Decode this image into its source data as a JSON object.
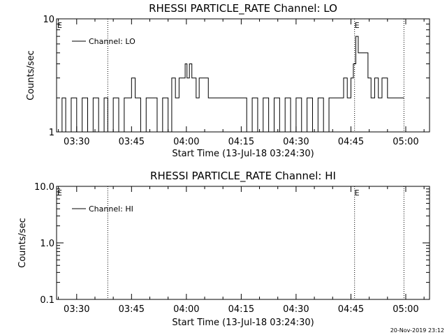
{
  "footer": {
    "timestamp": "20-Nov-2019 23:12"
  },
  "chart_data": [
    {
      "type": "line",
      "title": "RHESSI PARTICLE_RATE Channel: LO",
      "xlabel": "Start Time (13-Jul-18 03:24:30)",
      "ylabel": "Counts/sec",
      "y_scale": "log",
      "ylim": [
        1,
        10
      ],
      "xlim": [
        "03:24:30",
        "05:06:30"
      ],
      "x_ticks": [
        "03:30",
        "03:45",
        "04:00",
        "04:15",
        "04:30",
        "04:45",
        "05:00"
      ],
      "y_ticks": [
        "1",
        "10"
      ],
      "legend": {
        "position": "top-left",
        "entries": [
          "Channel: LO"
        ]
      },
      "event_lines": [
        "03:38:30",
        "04:46:00",
        "04:59:30"
      ],
      "event_markers": [
        {
          "label": "E",
          "time": "03:24:30"
        },
        {
          "label": "E",
          "time": "04:46:00"
        }
      ],
      "series": [
        {
          "name": "Channel: LO",
          "x": [
            "03:24:30",
            "03:26:00",
            "03:27:00",
            "03:28:30",
            "03:30:00",
            "03:31:30",
            "03:33:00",
            "03:34:30",
            "03:36:00",
            "03:37:30",
            "03:38:30",
            "03:40:00",
            "03:41:30",
            "03:43:00",
            "03:44:00",
            "03:45:00",
            "03:46:00",
            "03:47:30",
            "03:49:00",
            "03:50:30",
            "03:52:00",
            "03:53:30",
            "03:55:00",
            "03:56:00",
            "03:57:00",
            "03:58:00",
            "03:59:00",
            "03:59:40",
            "04:00:10",
            "04:00:50",
            "04:01:30",
            "04:02:00",
            "04:02:40",
            "04:03:30",
            "04:04:30",
            "04:06:00",
            "04:07:30",
            "04:09:00",
            "04:10:30",
            "04:12:00",
            "04:13:30",
            "04:15:00",
            "04:16:30",
            "04:18:00",
            "04:19:30",
            "04:21:00",
            "04:22:30",
            "04:24:00",
            "04:25:30",
            "04:27:00",
            "04:28:30",
            "04:30:00",
            "04:31:30",
            "04:33:00",
            "04:34:30",
            "04:36:00",
            "04:37:30",
            "04:39:00",
            "04:40:30",
            "04:42:00",
            "04:43:00",
            "04:44:00",
            "04:45:00",
            "04:45:40",
            "04:46:20",
            "04:47:00",
            "04:48:00",
            "04:49:00",
            "04:49:40",
            "04:50:30",
            "04:51:30",
            "04:52:30",
            "04:53:30",
            "04:55:00",
            "04:56:30",
            "04:58:00",
            "04:59:30"
          ],
          "y": [
            1,
            2,
            1,
            2,
            1,
            2,
            1,
            2,
            1,
            2,
            1,
            2,
            1,
            2,
            2,
            3,
            2,
            1,
            2,
            2,
            1,
            2,
            1,
            3,
            2,
            3,
            3,
            4,
            3,
            4,
            3,
            3,
            2,
            3,
            3,
            2,
            2,
            2,
            2,
            2,
            2,
            2,
            1,
            2,
            1,
            2,
            1,
            2,
            1,
            2,
            1,
            2,
            1,
            2,
            1,
            2,
            1,
            2,
            2,
            2,
            3,
            2,
            3,
            4,
            7,
            5,
            5,
            5,
            3,
            2,
            3,
            2,
            3,
            2,
            2,
            2,
            2
          ]
        }
      ]
    },
    {
      "type": "line",
      "title": "RHESSI PARTICLE_RATE Channel: HI",
      "xlabel": "Start Time (13-Jul-18 03:24:30)",
      "ylabel": "Counts/sec",
      "y_scale": "log",
      "ylim": [
        0.1,
        10
      ],
      "xlim": [
        "03:24:30",
        "05:06:30"
      ],
      "x_ticks": [
        "03:30",
        "03:45",
        "04:00",
        "04:15",
        "04:30",
        "04:45",
        "05:00"
      ],
      "y_ticks": [
        "0.1",
        "1.0",
        "10.0"
      ],
      "legend": {
        "position": "top-left",
        "entries": [
          "Channel: HI"
        ]
      },
      "event_lines": [
        "03:38:30",
        "04:46:00",
        "04:59:30"
      ],
      "event_markers": [
        {
          "label": "E",
          "time": "03:24:30"
        },
        {
          "label": "E",
          "time": "04:46:00"
        }
      ],
      "series": [
        {
          "name": "Channel: HI",
          "x": [],
          "y": []
        }
      ]
    }
  ]
}
